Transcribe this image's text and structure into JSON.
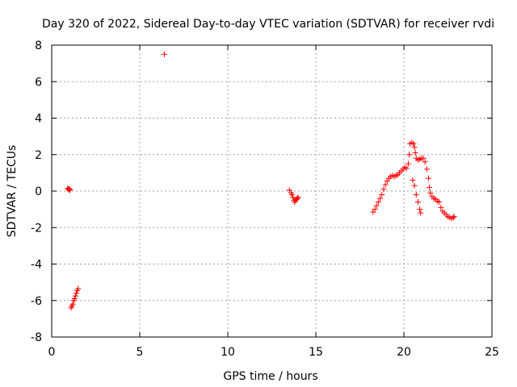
{
  "chart_data": {
    "type": "scatter",
    "title": "Day 320 of 2022, Sidereal Day-to-day VTEC variation (SDTVAR) for receiver rvdi",
    "xlabel": "GPS time / hours",
    "ylabel": "SDTVAR / TECUs",
    "xlim": [
      0,
      25
    ],
    "ylim": [
      -8,
      8
    ],
    "xticks": [
      0,
      5,
      10,
      15,
      20,
      25
    ],
    "yticks": [
      -8,
      -6,
      -4,
      -2,
      0,
      2,
      4,
      6,
      8
    ],
    "grid": true,
    "marker": "plus",
    "colors": {
      "series": "#ff0000",
      "grid": "#a0a0a0",
      "axis": "#000000"
    },
    "series": [
      {
        "points": [
          [
            0.9,
            0.15
          ],
          [
            0.95,
            0.1
          ],
          [
            1.0,
            0.12
          ],
          [
            1.05,
            0.08
          ],
          [
            1.0,
            0.05
          ],
          [
            1.1,
            -6.4
          ],
          [
            1.15,
            -6.3
          ],
          [
            1.2,
            -6.2
          ],
          [
            1.25,
            -6.0
          ],
          [
            1.3,
            -5.9
          ],
          [
            1.35,
            -5.75
          ],
          [
            1.4,
            -5.6
          ],
          [
            1.45,
            -5.45
          ],
          [
            1.5,
            -5.35
          ],
          [
            6.4,
            7.5
          ],
          [
            13.5,
            0.05
          ],
          [
            13.6,
            -0.1
          ],
          [
            13.65,
            -0.2
          ],
          [
            13.7,
            -0.35
          ],
          [
            13.75,
            -0.5
          ],
          [
            13.8,
            -0.6
          ],
          [
            13.85,
            -0.5
          ],
          [
            13.9,
            -0.45
          ],
          [
            13.95,
            -0.4
          ],
          [
            14.0,
            -0.35
          ],
          [
            18.25,
            -1.15
          ],
          [
            18.35,
            -1.0
          ],
          [
            18.45,
            -0.8
          ],
          [
            18.55,
            -0.6
          ],
          [
            18.65,
            -0.4
          ],
          [
            18.75,
            -0.2
          ],
          [
            18.85,
            0.1
          ],
          [
            18.95,
            0.35
          ],
          [
            19.05,
            0.55
          ],
          [
            19.15,
            0.7
          ],
          [
            19.25,
            0.8
          ],
          [
            19.35,
            0.85
          ],
          [
            19.45,
            0.8
          ],
          [
            19.55,
            0.85
          ],
          [
            19.65,
            0.9
          ],
          [
            19.75,
            1.0
          ],
          [
            19.85,
            1.1
          ],
          [
            19.95,
            1.2
          ],
          [
            20.05,
            1.3
          ],
          [
            20.15,
            1.25
          ],
          [
            20.25,
            1.5
          ],
          [
            20.3,
            2.0
          ],
          [
            20.35,
            2.6
          ],
          [
            20.45,
            2.65
          ],
          [
            20.55,
            2.6
          ],
          [
            20.6,
            2.4
          ],
          [
            20.65,
            2.1
          ],
          [
            20.5,
            0.6
          ],
          [
            20.6,
            0.3
          ],
          [
            20.7,
            -0.2
          ],
          [
            20.8,
            -0.6
          ],
          [
            20.9,
            -1.0
          ],
          [
            20.95,
            -1.2
          ],
          [
            20.7,
            1.8
          ],
          [
            20.8,
            1.7
          ],
          [
            20.9,
            1.75
          ],
          [
            21.0,
            1.8
          ],
          [
            21.1,
            1.8
          ],
          [
            21.2,
            1.6
          ],
          [
            21.3,
            1.2
          ],
          [
            21.4,
            0.7
          ],
          [
            21.45,
            0.2
          ],
          [
            21.5,
            -0.1
          ],
          [
            21.6,
            -0.3
          ],
          [
            21.7,
            -0.4
          ],
          [
            21.8,
            -0.45
          ],
          [
            21.9,
            -0.55
          ],
          [
            22.0,
            -0.6
          ],
          [
            22.1,
            -0.9
          ],
          [
            22.2,
            -1.1
          ],
          [
            22.3,
            -1.2
          ],
          [
            22.4,
            -1.3
          ],
          [
            22.5,
            -1.4
          ],
          [
            22.6,
            -1.45
          ],
          [
            22.7,
            -1.5
          ],
          [
            22.8,
            -1.45
          ],
          [
            22.85,
            -1.4
          ]
        ]
      }
    ]
  }
}
